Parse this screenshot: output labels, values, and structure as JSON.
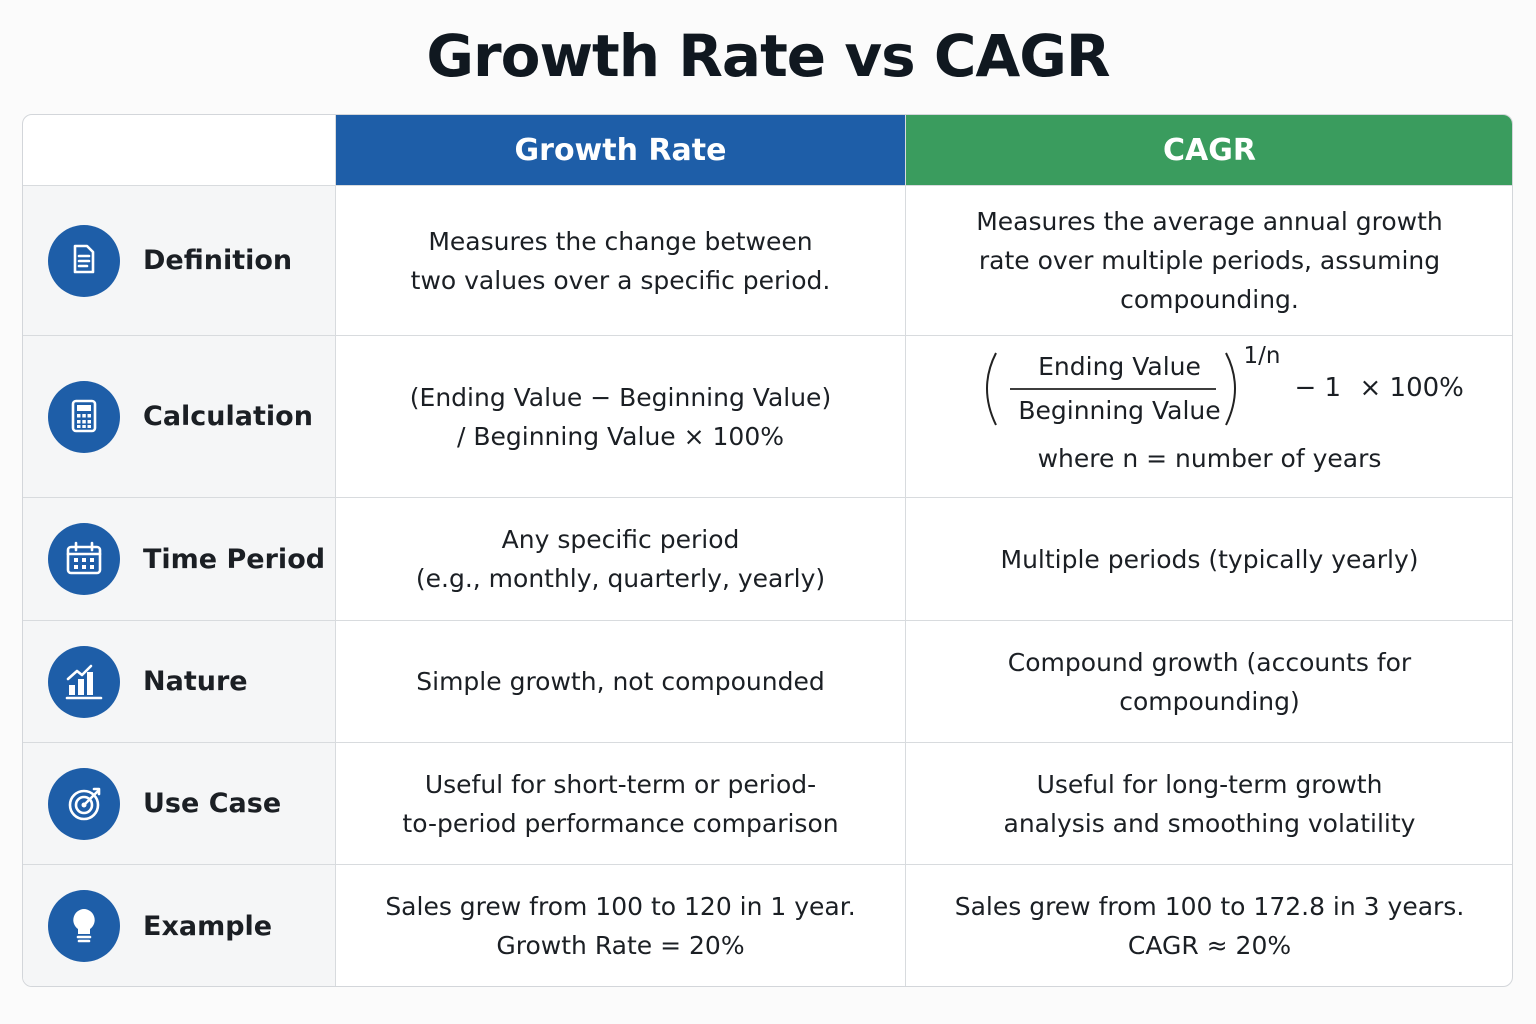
{
  "title": "Growth Rate vs CAGR",
  "table": {
    "columns": [
      "Growth Rate",
      "CAGR"
    ],
    "rows": [
      {
        "label": "Definition",
        "growth_rate": [
          "Measures the change between",
          "two values over a specific period."
        ],
        "cagr": [
          "Measures the average annual growth",
          "rate over multiple periods, assuming",
          "compounding."
        ]
      },
      {
        "label": "Calculation",
        "growth_rate": [
          "(Ending Value − Beginning Value)",
          "/ Beginning Value  × 100%"
        ],
        "cagr": {
          "numerator": "Ending Value",
          "denominator": "Beginning Value",
          "exponent": "1/n",
          "minus": "− 1",
          "multiply": "× 100%",
          "note": "where n = number of years"
        }
      },
      {
        "label": "Time Period",
        "growth_rate": [
          "Any specific period",
          "(e.g., monthly, quarterly, yearly)"
        ],
        "cagr": [
          "Multiple periods (typically yearly)"
        ]
      },
      {
        "label": "Nature",
        "growth_rate": [
          "Simple growth, not compounded"
        ],
        "cagr": [
          "Compound growth (accounts for",
          "compounding)"
        ]
      },
      {
        "label": "Use Case",
        "growth_rate": [
          "Useful for short-term or period-",
          "to-period performance comparison"
        ],
        "cagr": [
          "Useful for long-term growth",
          "analysis and smoothing volatility"
        ]
      },
      {
        "label": "Example",
        "growth_rate": [
          "Sales grew from 100 to 120 in 1 year.",
          "Growth Rate = 20%"
        ],
        "cagr": [
          "Sales grew from 100 to 172.8 in 3 years.",
          "CAGR ≈ 20%"
        ]
      }
    ]
  }
}
